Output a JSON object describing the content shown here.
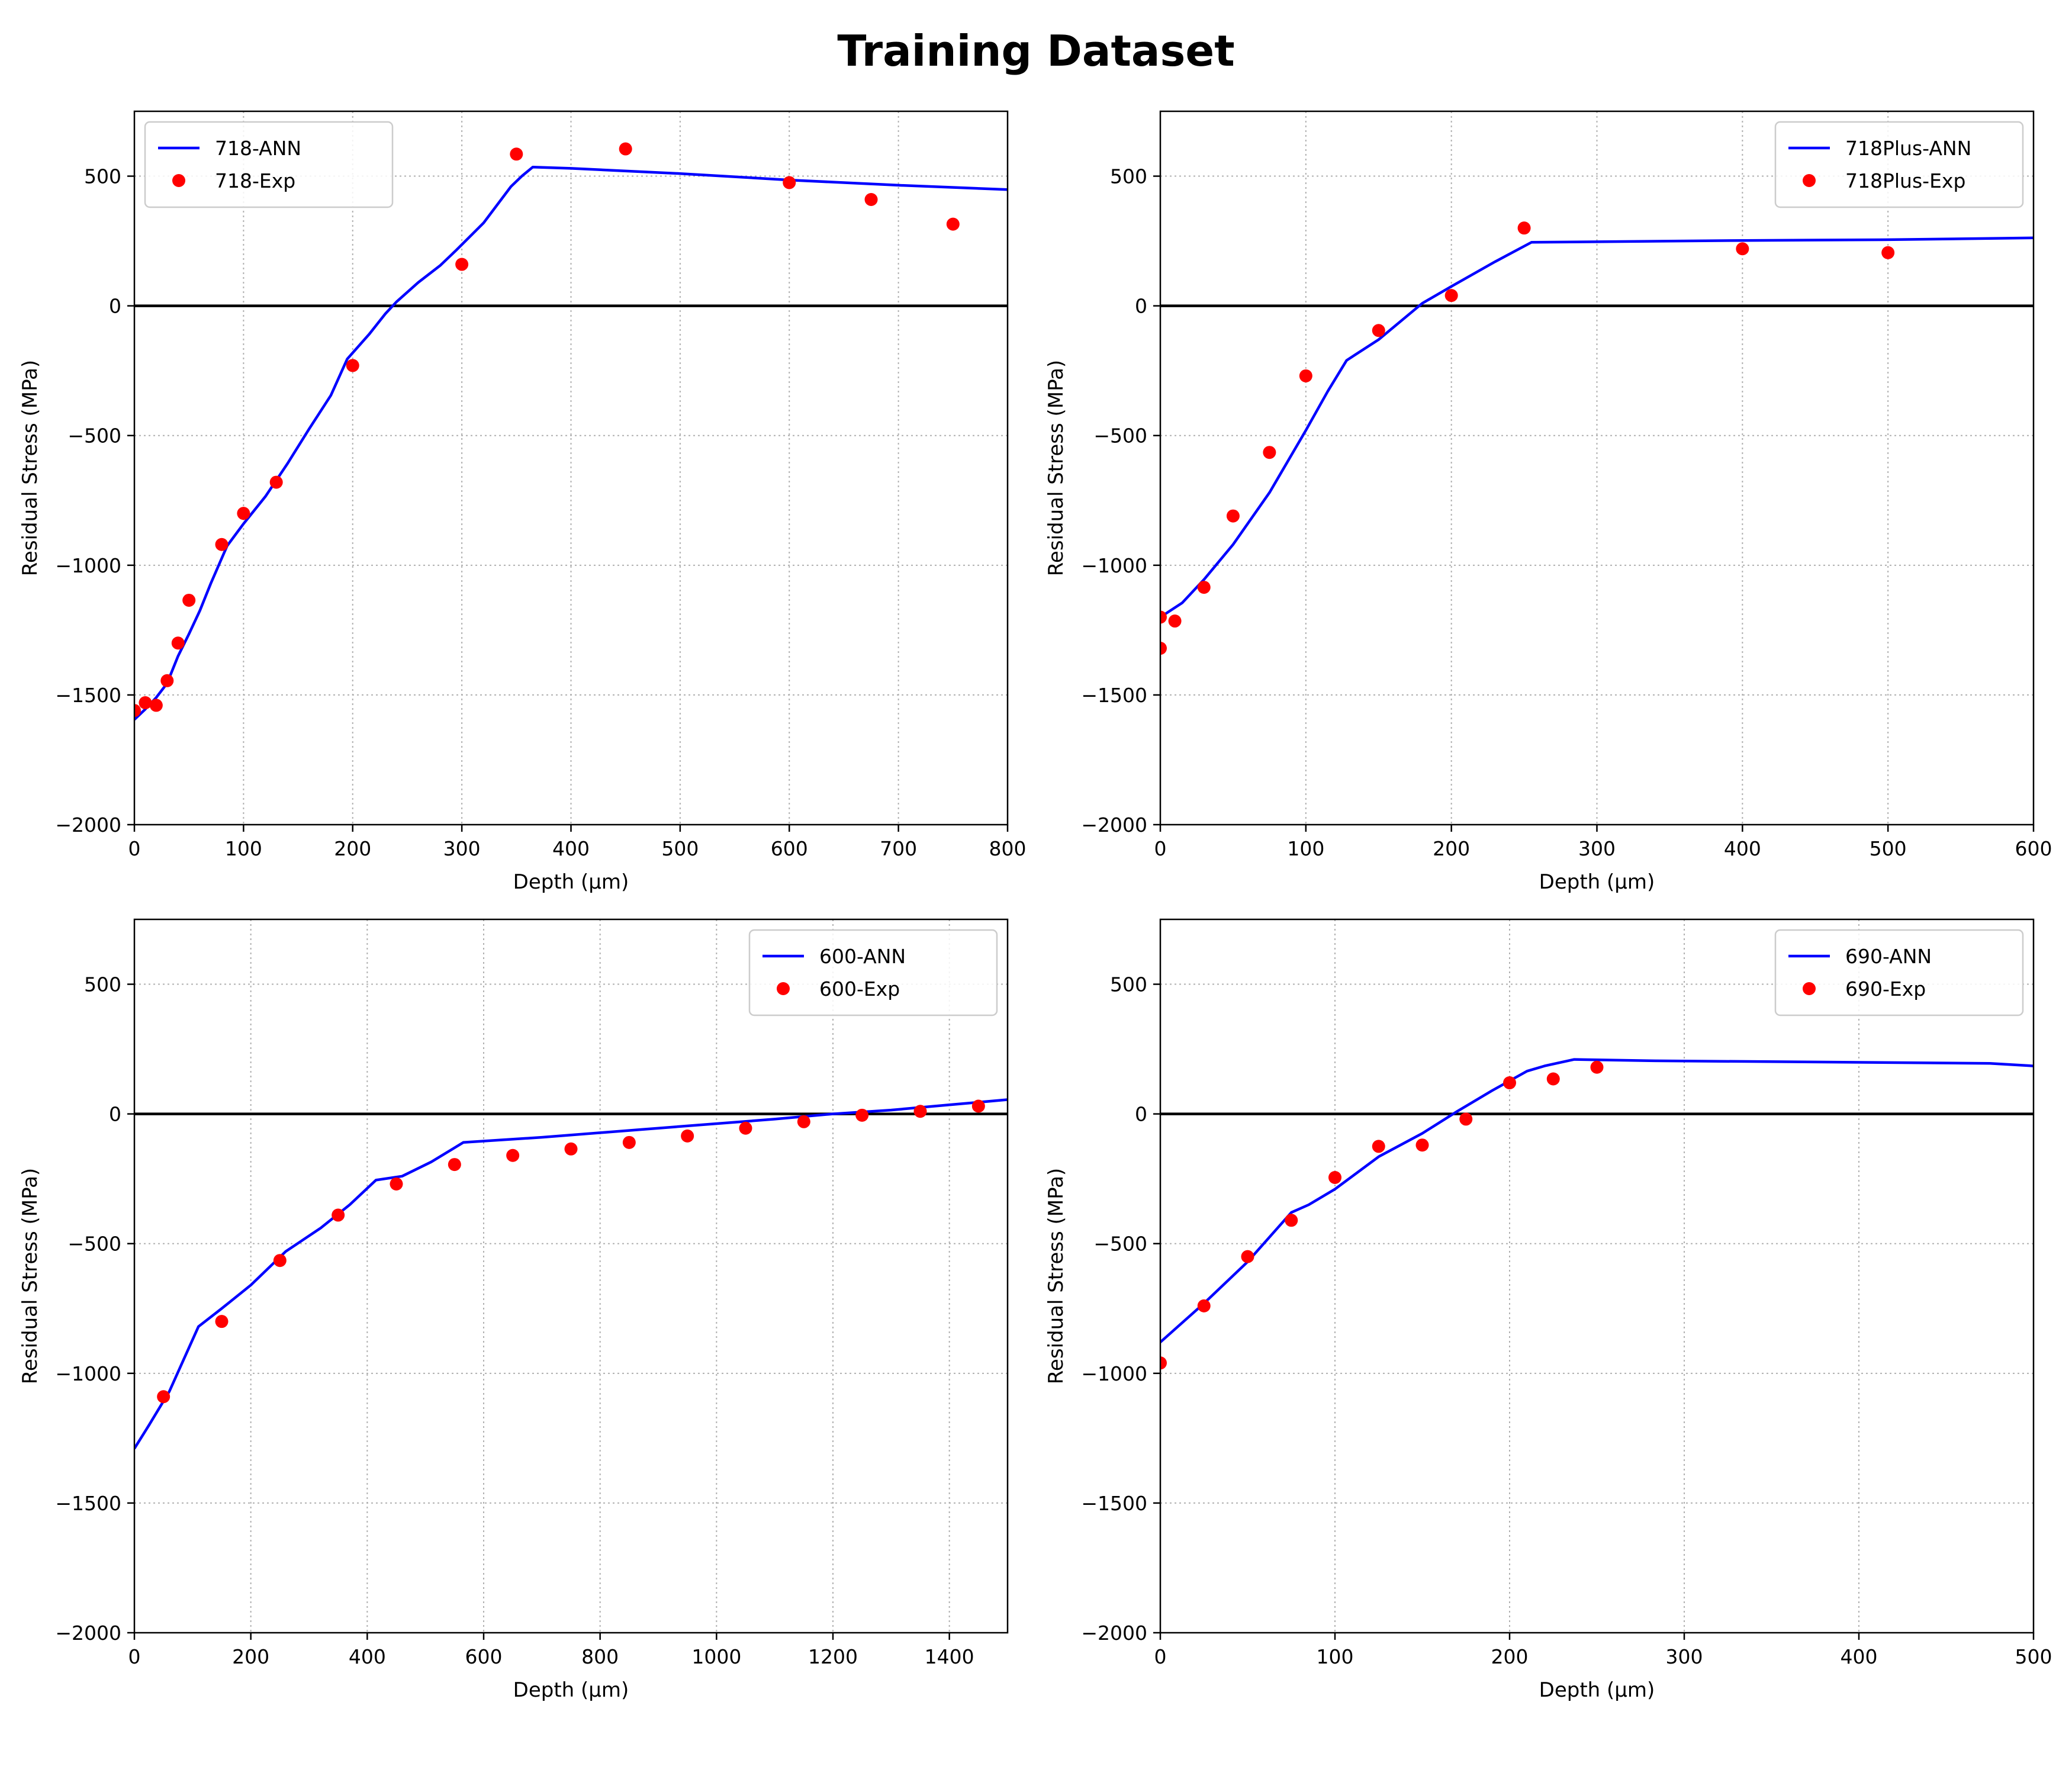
{
  "figure": {
    "title": "Training Dataset"
  },
  "chart_data": [
    {
      "type": "line",
      "xlabel": "Depth (μm)",
      "ylabel": "Residual Stress (MPa)",
      "xlim": [
        0,
        800
      ],
      "ylim": [
        -2000,
        750
      ],
      "xticks": [
        0,
        100,
        200,
        300,
        400,
        500,
        600,
        700,
        800
      ],
      "yticks": [
        -2000,
        -1500,
        -1000,
        -500,
        0,
        500
      ],
      "grid": true,
      "zero_line": true,
      "legend_position": "upper-left",
      "series": [
        {
          "name": "718-ANN",
          "kind": "line",
          "color": "#0000ff",
          "points": [
            [
              0,
              -1595
            ],
            [
              10,
              -1555
            ],
            [
              20,
              -1510
            ],
            [
              30,
              -1455
            ],
            [
              40,
              -1350
            ],
            [
              50,
              -1265
            ],
            [
              60,
              -1175
            ],
            [
              70,
              -1070
            ],
            [
              85,
              -925
            ],
            [
              100,
              -840
            ],
            [
              120,
              -735
            ],
            [
              140,
              -610
            ],
            [
              160,
              -475
            ],
            [
              180,
              -345
            ],
            [
              195,
              -205
            ],
            [
              215,
              -110
            ],
            [
              230,
              -30
            ],
            [
              240,
              15
            ],
            [
              260,
              90
            ],
            [
              280,
              155
            ],
            [
              295,
              215
            ],
            [
              320,
              320
            ],
            [
              345,
              460
            ],
            [
              355,
              500
            ],
            [
              365,
              535
            ],
            [
              400,
              530
            ],
            [
              500,
              510
            ],
            [
              600,
              485
            ],
            [
              700,
              465
            ],
            [
              800,
              448
            ]
          ]
        },
        {
          "name": "718-Exp",
          "kind": "scatter",
          "color": "#ff0000",
          "points": [
            [
              0,
              -1560
            ],
            [
              10,
              -1530
            ],
            [
              20,
              -1540
            ],
            [
              30,
              -1445
            ],
            [
              40,
              -1300
            ],
            [
              50,
              -1135
            ],
            [
              80,
              -920
            ],
            [
              100,
              -800
            ],
            [
              130,
              -680
            ],
            [
              200,
              -230
            ],
            [
              300,
              160
            ],
            [
              350,
              585
            ],
            [
              450,
              605
            ],
            [
              600,
              475
            ],
            [
              675,
              410
            ],
            [
              750,
              315
            ]
          ]
        }
      ]
    },
    {
      "type": "line",
      "xlabel": "Depth (μm)",
      "ylabel": "Residual Stress (MPa)",
      "xlim": [
        0,
        600
      ],
      "ylim": [
        -2000,
        750
      ],
      "xticks": [
        0,
        100,
        200,
        300,
        400,
        500,
        600
      ],
      "yticks": [
        -2000,
        -1500,
        -1000,
        -500,
        0,
        500
      ],
      "grid": true,
      "zero_line": true,
      "legend_position": "upper-right",
      "series": [
        {
          "name": "718Plus-ANN",
          "kind": "line",
          "color": "#0000ff",
          "points": [
            [
              0,
              -1200
            ],
            [
              15,
              -1145
            ],
            [
              30,
              -1055
            ],
            [
              50,
              -920
            ],
            [
              75,
              -720
            ],
            [
              100,
              -480
            ],
            [
              115,
              -330
            ],
            [
              128,
              -210
            ],
            [
              150,
              -130
            ],
            [
              180,
              10
            ],
            [
              200,
              75
            ],
            [
              230,
              170
            ],
            [
              255,
              245
            ],
            [
              300,
              247
            ],
            [
              400,
              252
            ],
            [
              500,
              255
            ],
            [
              600,
              262
            ]
          ]
        },
        {
          "name": "718Plus-Exp",
          "kind": "scatter",
          "color": "#ff0000",
          "points": [
            [
              0,
              -1200
            ],
            [
              0,
              -1320
            ],
            [
              10,
              -1215
            ],
            [
              30,
              -1085
            ],
            [
              50,
              -810
            ],
            [
              75,
              -565
            ],
            [
              100,
              -270
            ],
            [
              150,
              -95
            ],
            [
              200,
              40
            ],
            [
              250,
              300
            ],
            [
              400,
              220
            ],
            [
              500,
              205
            ]
          ]
        }
      ]
    },
    {
      "type": "line",
      "xlabel": "Depth (μm)",
      "ylabel": "Residual Stress (MPa)",
      "xlim": [
        0,
        1500
      ],
      "ylim": [
        -2000,
        750
      ],
      "xticks": [
        0,
        200,
        400,
        600,
        800,
        1000,
        1200,
        1400
      ],
      "yticks": [
        -2000,
        -1500,
        -1000,
        -500,
        0,
        500
      ],
      "grid": true,
      "zero_line": true,
      "legend_position": "upper-right",
      "series": [
        {
          "name": "600-ANN",
          "kind": "line",
          "color": "#0000ff",
          "points": [
            [
              0,
              -1290
            ],
            [
              25,
              -1200
            ],
            [
              60,
              -1070
            ],
            [
              110,
              -820
            ],
            [
              150,
              -750
            ],
            [
              200,
              -660
            ],
            [
              260,
              -530
            ],
            [
              320,
              -440
            ],
            [
              370,
              -350
            ],
            [
              415,
              -255
            ],
            [
              460,
              -240
            ],
            [
              510,
              -185
            ],
            [
              565,
              -110
            ],
            [
              700,
              -90
            ],
            [
              900,
              -55
            ],
            [
              1100,
              -20
            ],
            [
              1200,
              0
            ],
            [
              1300,
              15
            ],
            [
              1400,
              35
            ],
            [
              1500,
              55
            ]
          ]
        },
        {
          "name": "600-Exp",
          "kind": "scatter",
          "color": "#ff0000",
          "points": [
            [
              50,
              -1090
            ],
            [
              150,
              -800
            ],
            [
              250,
              -565
            ],
            [
              350,
              -390
            ],
            [
              450,
              -270
            ],
            [
              550,
              -195
            ],
            [
              650,
              -160
            ],
            [
              750,
              -135
            ],
            [
              850,
              -110
            ],
            [
              950,
              -85
            ],
            [
              1050,
              -55
            ],
            [
              1150,
              -30
            ],
            [
              1250,
              -5
            ],
            [
              1350,
              10
            ],
            [
              1450,
              30
            ]
          ]
        }
      ]
    },
    {
      "type": "line",
      "xlabel": "Depth (μm)",
      "ylabel": "Residual Stress (MPa)",
      "xlim": [
        0,
        500
      ],
      "ylim": [
        -2000,
        750
      ],
      "xticks": [
        0,
        100,
        200,
        300,
        400,
        500
      ],
      "yticks": [
        -2000,
        -1500,
        -1000,
        -500,
        0,
        500
      ],
      "grid": true,
      "zero_line": true,
      "legend_position": "upper-right",
      "series": [
        {
          "name": "690-ANN",
          "kind": "line",
          "color": "#0000ff",
          "points": [
            [
              0,
              -880
            ],
            [
              25,
              -730
            ],
            [
              50,
              -570
            ],
            [
              75,
              -380
            ],
            [
              85,
              -350
            ],
            [
              100,
              -290
            ],
            [
              125,
              -165
            ],
            [
              150,
              -75
            ],
            [
              170,
              10
            ],
            [
              190,
              90
            ],
            [
              210,
              165
            ],
            [
              220,
              185
            ],
            [
              237,
              210
            ],
            [
              280,
              205
            ],
            [
              380,
              200
            ],
            [
              475,
              195
            ],
            [
              500,
              185
            ]
          ]
        },
        {
          "name": "690-Exp",
          "kind": "scatter",
          "color": "#ff0000",
          "points": [
            [
              0,
              -960
            ],
            [
              25,
              -740
            ],
            [
              50,
              -550
            ],
            [
              75,
              -410
            ],
            [
              100,
              -245
            ],
            [
              125,
              -125
            ],
            [
              150,
              -120
            ],
            [
              175,
              -20
            ],
            [
              200,
              120
            ],
            [
              225,
              135
            ],
            [
              250,
              180
            ]
          ]
        }
      ]
    }
  ]
}
